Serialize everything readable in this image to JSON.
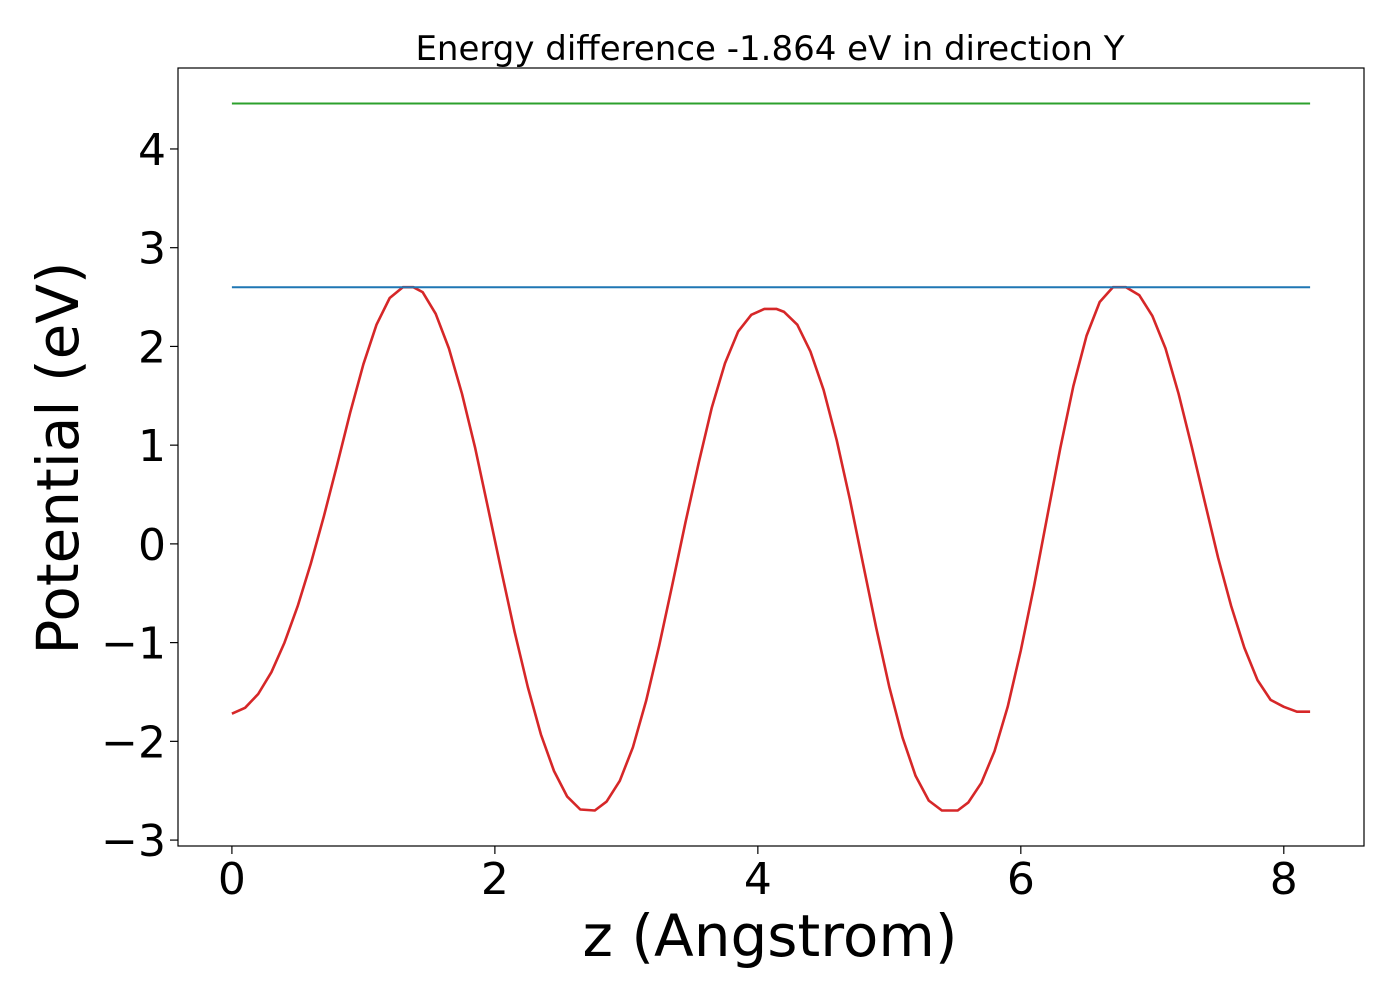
{
  "chart_data": {
    "type": "line",
    "title": "Energy difference -1.864 eV in direction Y",
    "xlabel": "z (Angstrom)",
    "ylabel": "Potential (eV)",
    "xlim": [
      -0.41,
      8.61
    ],
    "ylim": [
      -3.06,
      4.82
    ],
    "xticks": [
      0,
      2,
      4,
      6,
      8
    ],
    "xtick_labels": [
      "0",
      "2",
      "4",
      "6",
      "8"
    ],
    "yticks": [
      -3,
      -2,
      -1,
      0,
      1,
      2,
      3,
      4
    ],
    "ytick_labels": [
      "−3",
      "−2",
      "−1",
      "0",
      "1",
      "2",
      "3",
      "4"
    ],
    "grid": false,
    "series": [
      {
        "color": "#d62728",
        "x": [
          0,
          0.1,
          0.2,
          0.3,
          0.4,
          0.5,
          0.6,
          0.7,
          0.8,
          0.9,
          1.0,
          1.1,
          1.2,
          1.3,
          1.38,
          1.45,
          1.55,
          1.65,
          1.75,
          1.85,
          1.95,
          2.05,
          2.15,
          2.25,
          2.35,
          2.45,
          2.55,
          2.65,
          2.76,
          2.85,
          2.95,
          3.05,
          3.15,
          3.25,
          3.35,
          3.45,
          3.55,
          3.65,
          3.75,
          3.85,
          3.95,
          4.05,
          4.14,
          4.2,
          4.3,
          4.4,
          4.5,
          4.6,
          4.7,
          4.8,
          4.9,
          5.0,
          5.1,
          5.2,
          5.3,
          5.4,
          5.52,
          5.6,
          5.7,
          5.8,
          5.9,
          6.0,
          6.1,
          6.2,
          6.3,
          6.4,
          6.5,
          6.6,
          6.7,
          6.8,
          6.9,
          7.0,
          7.1,
          7.2,
          7.3,
          7.4,
          7.5,
          7.6,
          7.7,
          7.8,
          7.9,
          8.0,
          8.1,
          8.2
        ],
        "y": [
          -1.72,
          -1.66,
          -1.52,
          -1.3,
          -1.0,
          -0.63,
          -0.2,
          0.28,
          0.8,
          1.33,
          1.82,
          2.22,
          2.49,
          2.6,
          2.6,
          2.55,
          2.33,
          1.98,
          1.52,
          0.97,
          0.35,
          -0.28,
          -0.89,
          -1.45,
          -1.93,
          -2.3,
          -2.56,
          -2.69,
          -2.7,
          -2.61,
          -2.4,
          -2.06,
          -1.59,
          -1.03,
          -0.41,
          0.22,
          0.82,
          1.38,
          1.83,
          2.15,
          2.32,
          2.38,
          2.38,
          2.35,
          2.22,
          1.95,
          1.56,
          1.05,
          0.45,
          -0.2,
          -0.85,
          -1.45,
          -1.96,
          -2.35,
          -2.6,
          -2.7,
          -2.7,
          -2.62,
          -2.42,
          -2.1,
          -1.65,
          -1.08,
          -0.43,
          0.27,
          0.97,
          1.6,
          2.11,
          2.45,
          2.6,
          2.6,
          2.52,
          2.31,
          1.98,
          1.52,
          0.98,
          0.42,
          -0.14,
          -0.63,
          -1.05,
          -1.38,
          -1.58,
          -1.65,
          -1.7,
          -1.7
        ]
      },
      {
        "color": "#1f77b4",
        "x": [
          0,
          8.2
        ],
        "y": [
          2.6,
          2.6
        ]
      },
      {
        "color": "#2ca02c",
        "x": [
          0,
          8.2
        ],
        "y": [
          4.46,
          4.46
        ]
      }
    ]
  }
}
